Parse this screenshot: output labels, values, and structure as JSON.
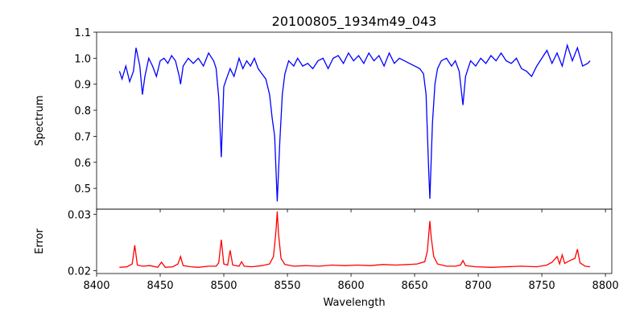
{
  "chart_data": [
    {
      "type": "line",
      "title": "20100805_1934m49_043",
      "xlabel": "",
      "ylabel": "Spectrum",
      "xlim": [
        8400,
        8805
      ],
      "ylim": [
        0.42,
        1.1
      ],
      "xticks": [
        8400,
        8450,
        8500,
        8550,
        8600,
        8650,
        8700,
        8750,
        8800
      ],
      "yticks": [
        "0.5",
        "0.6",
        "0.7",
        "0.8",
        "0.9",
        "1.0",
        "1.1"
      ],
      "color": "#0000ff",
      "series": [
        {
          "name": "Spectrum",
          "x": [
            8418,
            8420,
            8423,
            8426,
            8429,
            8431,
            8434,
            8436,
            8438,
            8441,
            8444,
            8447,
            8450,
            8453,
            8456,
            8459,
            8462,
            8465,
            8466,
            8468,
            8472,
            8476,
            8480,
            8484,
            8488,
            8492,
            8494,
            8496,
            8498,
            8500,
            8502,
            8505,
            8508,
            8512,
            8515,
            8518,
            8521,
            8524,
            8527,
            8530,
            8533,
            8536,
            8538,
            8540,
            8542,
            8544,
            8546,
            8548,
            8551,
            8555,
            8558,
            8562,
            8566,
            8570,
            8574,
            8578,
            8582,
            8586,
            8590,
            8594,
            8598,
            8602,
            8606,
            8610,
            8614,
            8618,
            8622,
            8626,
            8630,
            8634,
            8638,
            8642,
            8646,
            8650,
            8654,
            8657,
            8659,
            8661,
            8662,
            8664,
            8666,
            8668,
            8671,
            8675,
            8679,
            8682,
            8685,
            8688,
            8690,
            8694,
            8698,
            8702,
            8706,
            8710,
            8714,
            8718,
            8722,
            8726,
            8730,
            8734,
            8738,
            8742,
            8746,
            8750,
            8754,
            8758,
            8762,
            8766,
            8770,
            8774,
            8778,
            8782,
            8786,
            8788
          ],
          "y": [
            0.95,
            0.92,
            0.97,
            0.91,
            0.95,
            1.04,
            0.97,
            0.86,
            0.93,
            1.0,
            0.97,
            0.93,
            0.99,
            1.0,
            0.98,
            1.01,
            0.99,
            0.93,
            0.9,
            0.97,
            1.0,
            0.98,
            1.0,
            0.97,
            1.02,
            0.99,
            0.96,
            0.85,
            0.62,
            0.89,
            0.92,
            0.96,
            0.93,
            1.0,
            0.96,
            0.99,
            0.97,
            1.0,
            0.96,
            0.94,
            0.92,
            0.86,
            0.77,
            0.7,
            0.45,
            0.68,
            0.86,
            0.94,
            0.99,
            0.97,
            1.0,
            0.97,
            0.98,
            0.96,
            0.99,
            1.0,
            0.96,
            1.0,
            1.01,
            0.98,
            1.02,
            0.99,
            1.01,
            0.98,
            1.02,
            0.99,
            1.01,
            0.97,
            1.02,
            0.98,
            1.0,
            0.99,
            0.98,
            0.97,
            0.96,
            0.94,
            0.86,
            0.58,
            0.46,
            0.75,
            0.9,
            0.96,
            0.99,
            1.0,
            0.97,
            0.99,
            0.95,
            0.82,
            0.93,
            0.99,
            0.97,
            1.0,
            0.98,
            1.01,
            0.99,
            1.02,
            0.99,
            0.98,
            1.0,
            0.96,
            0.95,
            0.93,
            0.97,
            1.0,
            1.03,
            0.98,
            1.02,
            0.97,
            1.05,
            0.99,
            1.04,
            0.97,
            0.98,
            0.99
          ]
        }
      ]
    },
    {
      "type": "line",
      "title": "",
      "xlabel": "Wavelength",
      "ylabel": "Error",
      "xlim": [
        8400,
        8805
      ],
      "ylim": [
        0.0195,
        0.0309
      ],
      "xticks": [
        8400,
        8450,
        8500,
        8550,
        8600,
        8650,
        8700,
        8750,
        8800
      ],
      "xticklabels": [
        "8400",
        "8450",
        "8500",
        "8550",
        "8600",
        "8650",
        "8700",
        "8750",
        "8800"
      ],
      "yticks": [
        "0.02",
        "0.03"
      ],
      "color": "#ff0000",
      "series": [
        {
          "name": "Error",
          "x": [
            8418,
            8424,
            8428,
            8430,
            8432,
            8436,
            8442,
            8448,
            8451,
            8454,
            8460,
            8464,
            8466,
            8468,
            8474,
            8480,
            8488,
            8494,
            8496,
            8498,
            8500,
            8503,
            8505,
            8507,
            8512,
            8514,
            8516,
            8522,
            8530,
            8536,
            8539,
            8541,
            8542,
            8543,
            8545,
            8548,
            8555,
            8565,
            8575,
            8585,
            8595,
            8605,
            8615,
            8625,
            8635,
            8645,
            8652,
            8658,
            8660,
            8662,
            8663,
            8665,
            8668,
            8675,
            8682,
            8686,
            8688,
            8690,
            8698,
            8710,
            8722,
            8734,
            8746,
            8754,
            8758,
            8762,
            8764,
            8766,
            8768,
            8772,
            8776,
            8778,
            8780,
            8784,
            8788
          ],
          "y": [
            0.0206,
            0.0207,
            0.0212,
            0.0245,
            0.021,
            0.0208,
            0.0209,
            0.0206,
            0.0215,
            0.0206,
            0.0207,
            0.0212,
            0.0225,
            0.0209,
            0.0207,
            0.0206,
            0.0208,
            0.0208,
            0.0214,
            0.0255,
            0.0212,
            0.021,
            0.0236,
            0.021,
            0.0208,
            0.0216,
            0.0208,
            0.0207,
            0.0209,
            0.0212,
            0.0225,
            0.027,
            0.0305,
            0.0265,
            0.0222,
            0.0211,
            0.0208,
            0.0209,
            0.0208,
            0.021,
            0.0209,
            0.021,
            0.0209,
            0.0211,
            0.021,
            0.0211,
            0.0212,
            0.0216,
            0.0235,
            0.0288,
            0.026,
            0.0225,
            0.0212,
            0.0208,
            0.0208,
            0.021,
            0.0218,
            0.0209,
            0.0207,
            0.0206,
            0.0207,
            0.0208,
            0.0207,
            0.021,
            0.0215,
            0.0225,
            0.0212,
            0.0228,
            0.0213,
            0.0218,
            0.0222,
            0.0238,
            0.0214,
            0.0208,
            0.0207
          ]
        }
      ]
    }
  ]
}
